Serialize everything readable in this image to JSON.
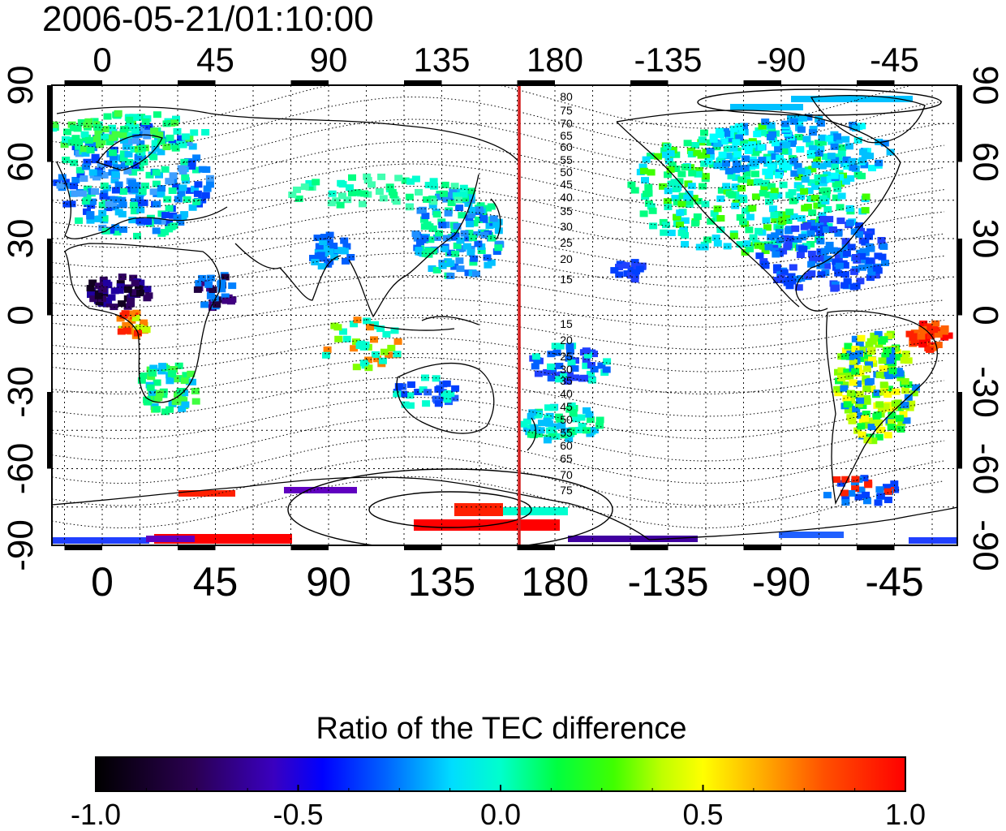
{
  "timestamp": "2006-05-21/01:10:00",
  "lon_ticks": [
    "0",
    "45",
    "90",
    "135",
    "180",
    "-135",
    "-90",
    "-45"
  ],
  "lat_ticks_left": [
    "90",
    "60",
    "30",
    "0",
    "-30",
    "-60",
    "-90"
  ],
  "lat_ticks_right": [
    "90",
    "60",
    "30",
    "0",
    "-30",
    "-60",
    "-90"
  ],
  "contours_north": [
    "80",
    "75",
    "70",
    "65",
    "60",
    "55",
    "50",
    "45",
    "40",
    "35",
    "30",
    "25",
    "20",
    "15"
  ],
  "contours_south": [
    "15",
    "20",
    "25",
    "30",
    "35",
    "40",
    "45",
    "50",
    "55",
    "60",
    "65",
    "70",
    "75"
  ],
  "colorbar": {
    "title": "Ratio of the TEC difference",
    "ticks": [
      "-1.0",
      "-0.5",
      "0.0",
      "0.5",
      "1.0"
    ],
    "range": [
      -1.0,
      1.0
    ]
  },
  "map": {
    "lon_range": [
      -20,
      340
    ],
    "lat_range": [
      -90,
      90
    ],
    "terminator_lon": 162,
    "terminator_color": "#d42020"
  }
}
